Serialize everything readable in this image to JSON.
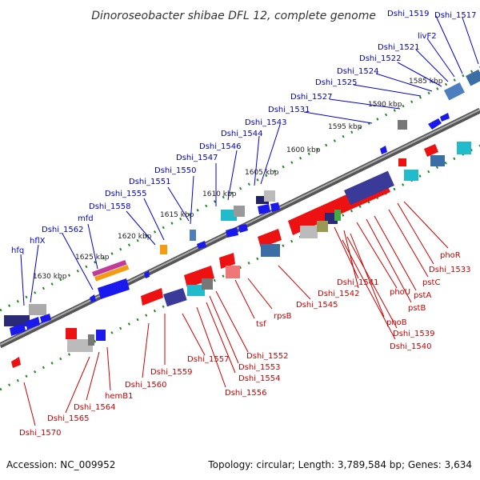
{
  "title": "Dinoroseobacter shibae DFL 12, complete genome",
  "footer": {
    "accession": "Accession: NC_009952",
    "topology": "Topology: circular; Length: 3,789,584 bp; Genes: 3,634"
  },
  "colors": {
    "backbone": "#888888",
    "forward": "#1a1aee",
    "reverse": "#ee1111",
    "dots": "#228822",
    "label_forward": "#0000cc",
    "label_reverse": "#cc0000"
  },
  "ticks": [
    "1585 kbp",
    "1590 kbp",
    "1595 kbp",
    "1600 kbp",
    "1605 kbp",
    "1610 kbp",
    "1615 kbp",
    "1620 kbp",
    "1625 kbp",
    "1630 kbp"
  ],
  "forward_labels": [
    "Dshi_1519",
    "Dshi_1517",
    "livF2",
    "Dshi_1521",
    "Dshi_1522",
    "Dshi_1524",
    "Dshi_1525",
    "Dshi_1527",
    "Dshi_1531",
    "Dshi_1543",
    "Dshi_1544",
    "Dshi_1546",
    "Dshi_1547",
    "Dshi_1550",
    "Dshi_1551",
    "Dshi_1555",
    "Dshi_1558",
    "mfd",
    "Dshi_1562",
    "hflX",
    "hfq"
  ],
  "reverse_labels": [
    "phoR",
    "Dshi_1533",
    "pstC",
    "pstA",
    "pstB",
    "phoU",
    "Dshi_1541",
    "Dshi_1542",
    "phoB",
    "Dshi_1539",
    "Dshi_1540",
    "Dshi_1545",
    "rpsB",
    "tsf",
    "Dshi_1552",
    "Dshi_1553",
    "Dshi_1554",
    "Dshi_1556",
    "Dshi_1557",
    "Dshi_1559",
    "Dshi_1560",
    "hemB1",
    "Dshi_1564",
    "Dshi_1565",
    "Dshi_1570"
  ]
}
